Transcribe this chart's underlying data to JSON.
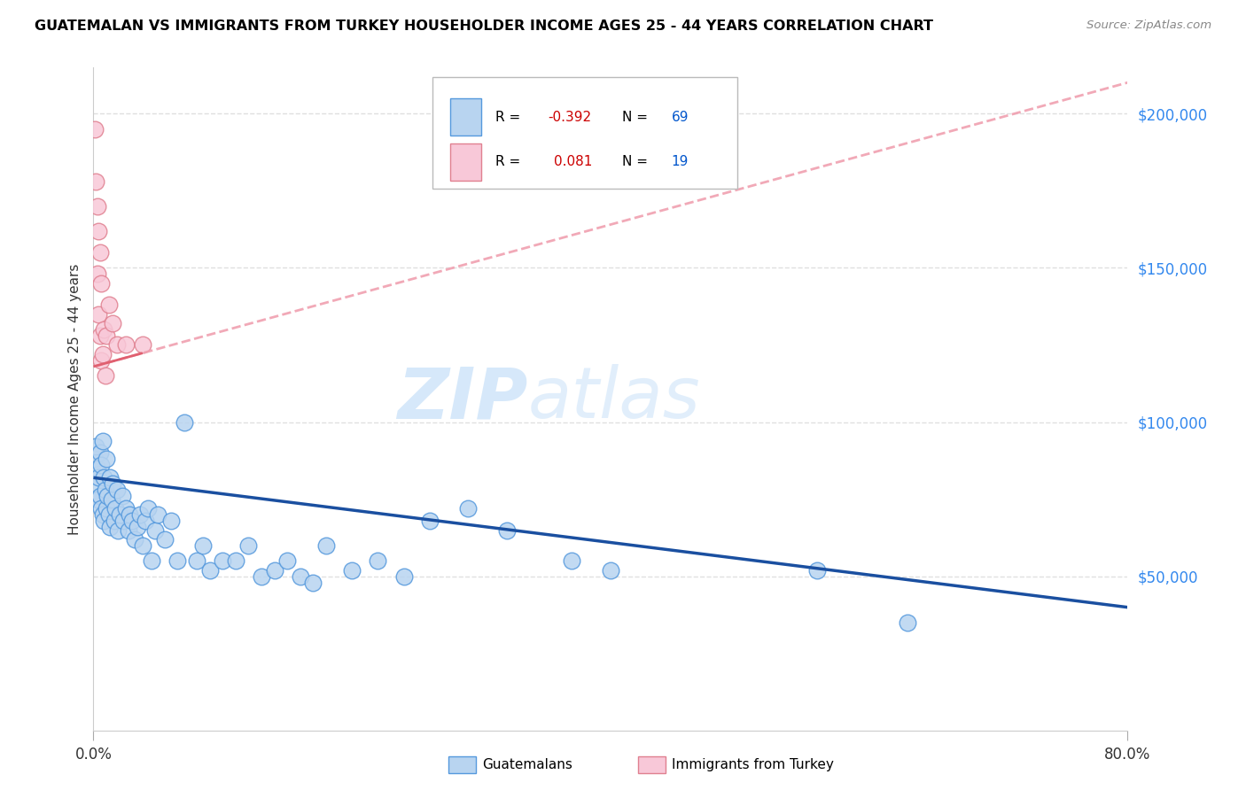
{
  "title": "GUATEMALAN VS IMMIGRANTS FROM TURKEY HOUSEHOLDER INCOME AGES 25 - 44 YEARS CORRELATION CHART",
  "source": "Source: ZipAtlas.com",
  "ylabel": "Householder Income Ages 25 - 44 years",
  "ytick_values": [
    50000,
    100000,
    150000,
    200000
  ],
  "ytick_labels": [
    "$50,000",
    "$100,000",
    "$150,000",
    "$200,000"
  ],
  "ylim": [
    0,
    215000
  ],
  "xlim": [
    0.0,
    0.8
  ],
  "watermark_zip": "ZIP",
  "watermark_atlas": "atlas",
  "legend_blue_r": "-0.392",
  "legend_blue_n": "69",
  "legend_pink_r": "0.081",
  "legend_pink_n": "19",
  "blue_fill": "#b8d4f0",
  "blue_edge": "#5599dd",
  "pink_fill": "#f8c8d8",
  "pink_edge": "#e08090",
  "blue_line_color": "#1a4fa0",
  "pink_solid_color": "#e06070",
  "pink_dash_color": "#f0a0b0",
  "grid_color": "#e0e0e0",
  "guat_x": [
    0.001,
    0.002,
    0.002,
    0.003,
    0.003,
    0.004,
    0.005,
    0.005,
    0.006,
    0.006,
    0.007,
    0.007,
    0.008,
    0.008,
    0.009,
    0.01,
    0.01,
    0.011,
    0.012,
    0.013,
    0.013,
    0.014,
    0.015,
    0.016,
    0.017,
    0.018,
    0.019,
    0.02,
    0.022,
    0.023,
    0.025,
    0.027,
    0.028,
    0.03,
    0.032,
    0.034,
    0.036,
    0.038,
    0.04,
    0.042,
    0.045,
    0.048,
    0.05,
    0.055,
    0.06,
    0.065,
    0.07,
    0.08,
    0.085,
    0.09,
    0.1,
    0.11,
    0.12,
    0.13,
    0.14,
    0.15,
    0.16,
    0.17,
    0.18,
    0.2,
    0.22,
    0.24,
    0.26,
    0.29,
    0.32,
    0.37,
    0.4,
    0.56,
    0.63
  ],
  "guat_y": [
    88000,
    92000,
    80000,
    85000,
    75000,
    82000,
    90000,
    76000,
    86000,
    72000,
    94000,
    70000,
    82000,
    68000,
    78000,
    88000,
    72000,
    76000,
    70000,
    82000,
    66000,
    75000,
    80000,
    68000,
    72000,
    78000,
    65000,
    70000,
    76000,
    68000,
    72000,
    65000,
    70000,
    68000,
    62000,
    66000,
    70000,
    60000,
    68000,
    72000,
    55000,
    65000,
    70000,
    62000,
    68000,
    55000,
    100000,
    55000,
    60000,
    52000,
    55000,
    55000,
    60000,
    50000,
    52000,
    55000,
    50000,
    48000,
    60000,
    52000,
    55000,
    50000,
    68000,
    72000,
    65000,
    55000,
    52000,
    52000,
    35000
  ],
  "turkey_x": [
    0.001,
    0.002,
    0.003,
    0.003,
    0.004,
    0.004,
    0.005,
    0.005,
    0.006,
    0.006,
    0.007,
    0.008,
    0.009,
    0.01,
    0.012,
    0.015,
    0.018,
    0.025,
    0.038
  ],
  "turkey_y": [
    195000,
    178000,
    170000,
    148000,
    162000,
    135000,
    155000,
    128000,
    145000,
    120000,
    122000,
    130000,
    115000,
    128000,
    138000,
    132000,
    125000,
    125000,
    125000
  ]
}
